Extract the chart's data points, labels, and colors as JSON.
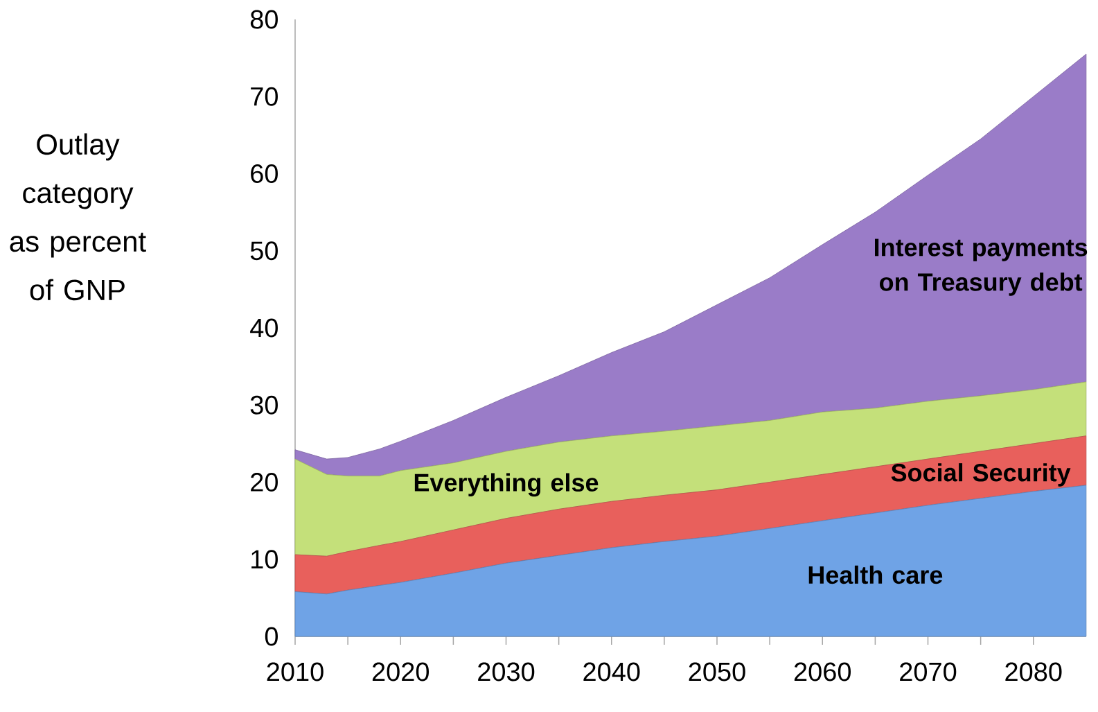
{
  "chart_data": {
    "type": "area",
    "stacked": true,
    "ylabel": "Outlay category as percent of GNP",
    "x": [
      2010,
      2013,
      2015,
      2018,
      2020,
      2025,
      2030,
      2035,
      2040,
      2045,
      2050,
      2055,
      2060,
      2065,
      2070,
      2075,
      2080,
      2085
    ],
    "xlim": [
      2010,
      2085
    ],
    "xticks": [
      2010,
      {
        "value": 2015,
        "label": null
      },
      2020,
      {
        "value": 2025,
        "label": null
      },
      2030,
      {
        "value": 2035,
        "label": null
      },
      2040,
      {
        "value": 2045,
        "label": null
      },
      2050,
      {
        "value": 2055,
        "label": null
      },
      2060,
      {
        "value": 2065,
        "label": null
      },
      2070,
      {
        "value": 2075,
        "label": null
      },
      2080
    ],
    "ylim": [
      0,
      80
    ],
    "yticks": [
      0,
      10,
      20,
      30,
      40,
      50,
      60,
      70,
      80
    ],
    "series": [
      {
        "name": "Health care",
        "color": "#6fa3e6",
        "values": [
          5.8,
          5.5,
          6.0,
          6.6,
          7.0,
          8.2,
          9.5,
          10.5,
          11.5,
          12.3,
          13.0,
          14.0,
          15.0,
          16.0,
          17.0,
          17.9,
          18.8,
          19.6
        ]
      },
      {
        "name": "Social Security",
        "color": "#e8605c",
        "values": [
          4.8,
          4.9,
          5.0,
          5.2,
          5.3,
          5.6,
          5.8,
          6.0,
          6.0,
          6.0,
          6.0,
          6.0,
          6.0,
          6.0,
          6.0,
          6.1,
          6.2,
          6.4
        ]
      },
      {
        "name": "Everything else",
        "color": "#c4e07a",
        "values": [
          12.4,
          10.6,
          9.8,
          9.0,
          9.2,
          8.7,
          8.7,
          8.7,
          8.5,
          8.3,
          8.3,
          8.0,
          8.1,
          7.6,
          7.5,
          7.2,
          7.0,
          7.0
        ]
      },
      {
        "name": "Interest payments on Treasury debt",
        "color": "#9a7cc8",
        "values": [
          1.2,
          2.0,
          2.4,
          3.5,
          3.8,
          5.5,
          7.0,
          8.6,
          10.8,
          12.9,
          15.7,
          18.5,
          21.7,
          25.4,
          29.3,
          33.3,
          38.0,
          42.5
        ]
      }
    ]
  }
}
